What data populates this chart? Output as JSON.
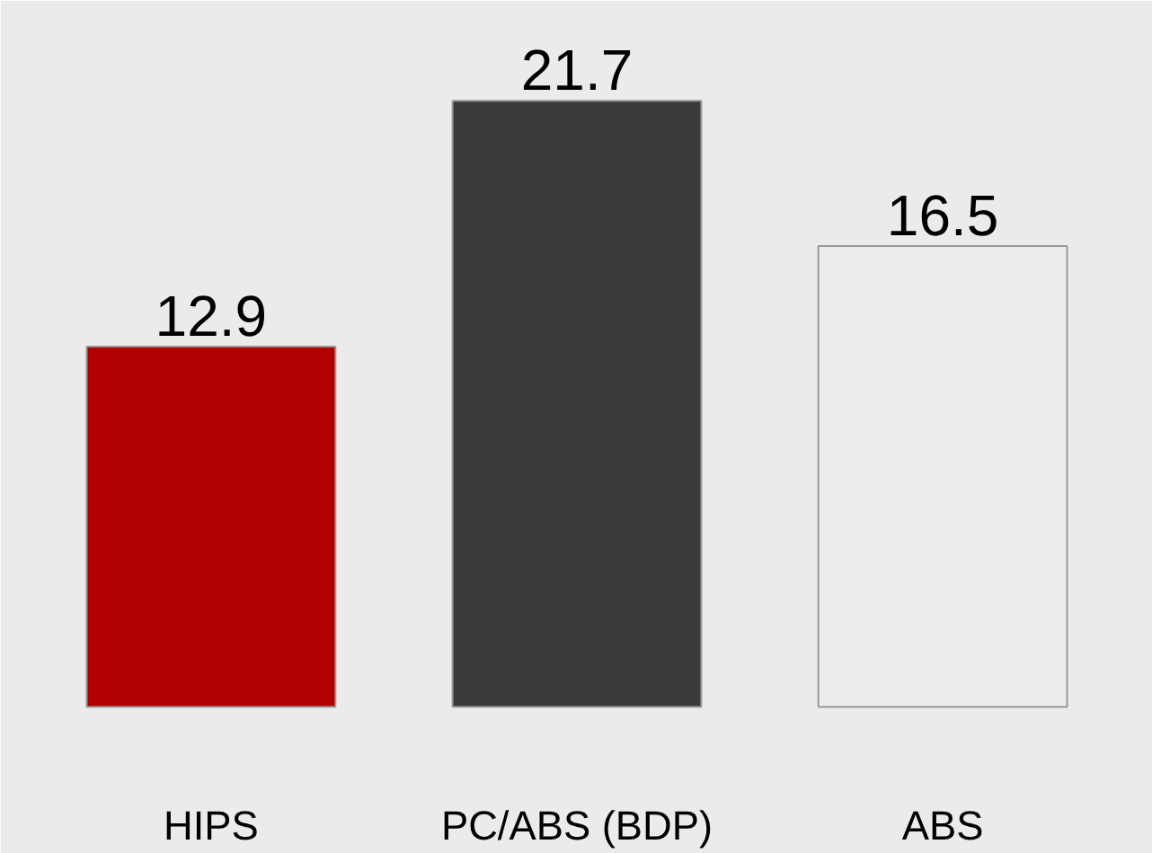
{
  "chart_data": {
    "type": "bar",
    "categories": [
      "HIPS",
      "PC/ABS (BDP)",
      "ABS"
    ],
    "values": [
      12.9,
      21.7,
      16.5
    ],
    "colors": [
      "#b00000",
      "#3a3a3a",
      "#ececec"
    ],
    "data_labels": true
  }
}
